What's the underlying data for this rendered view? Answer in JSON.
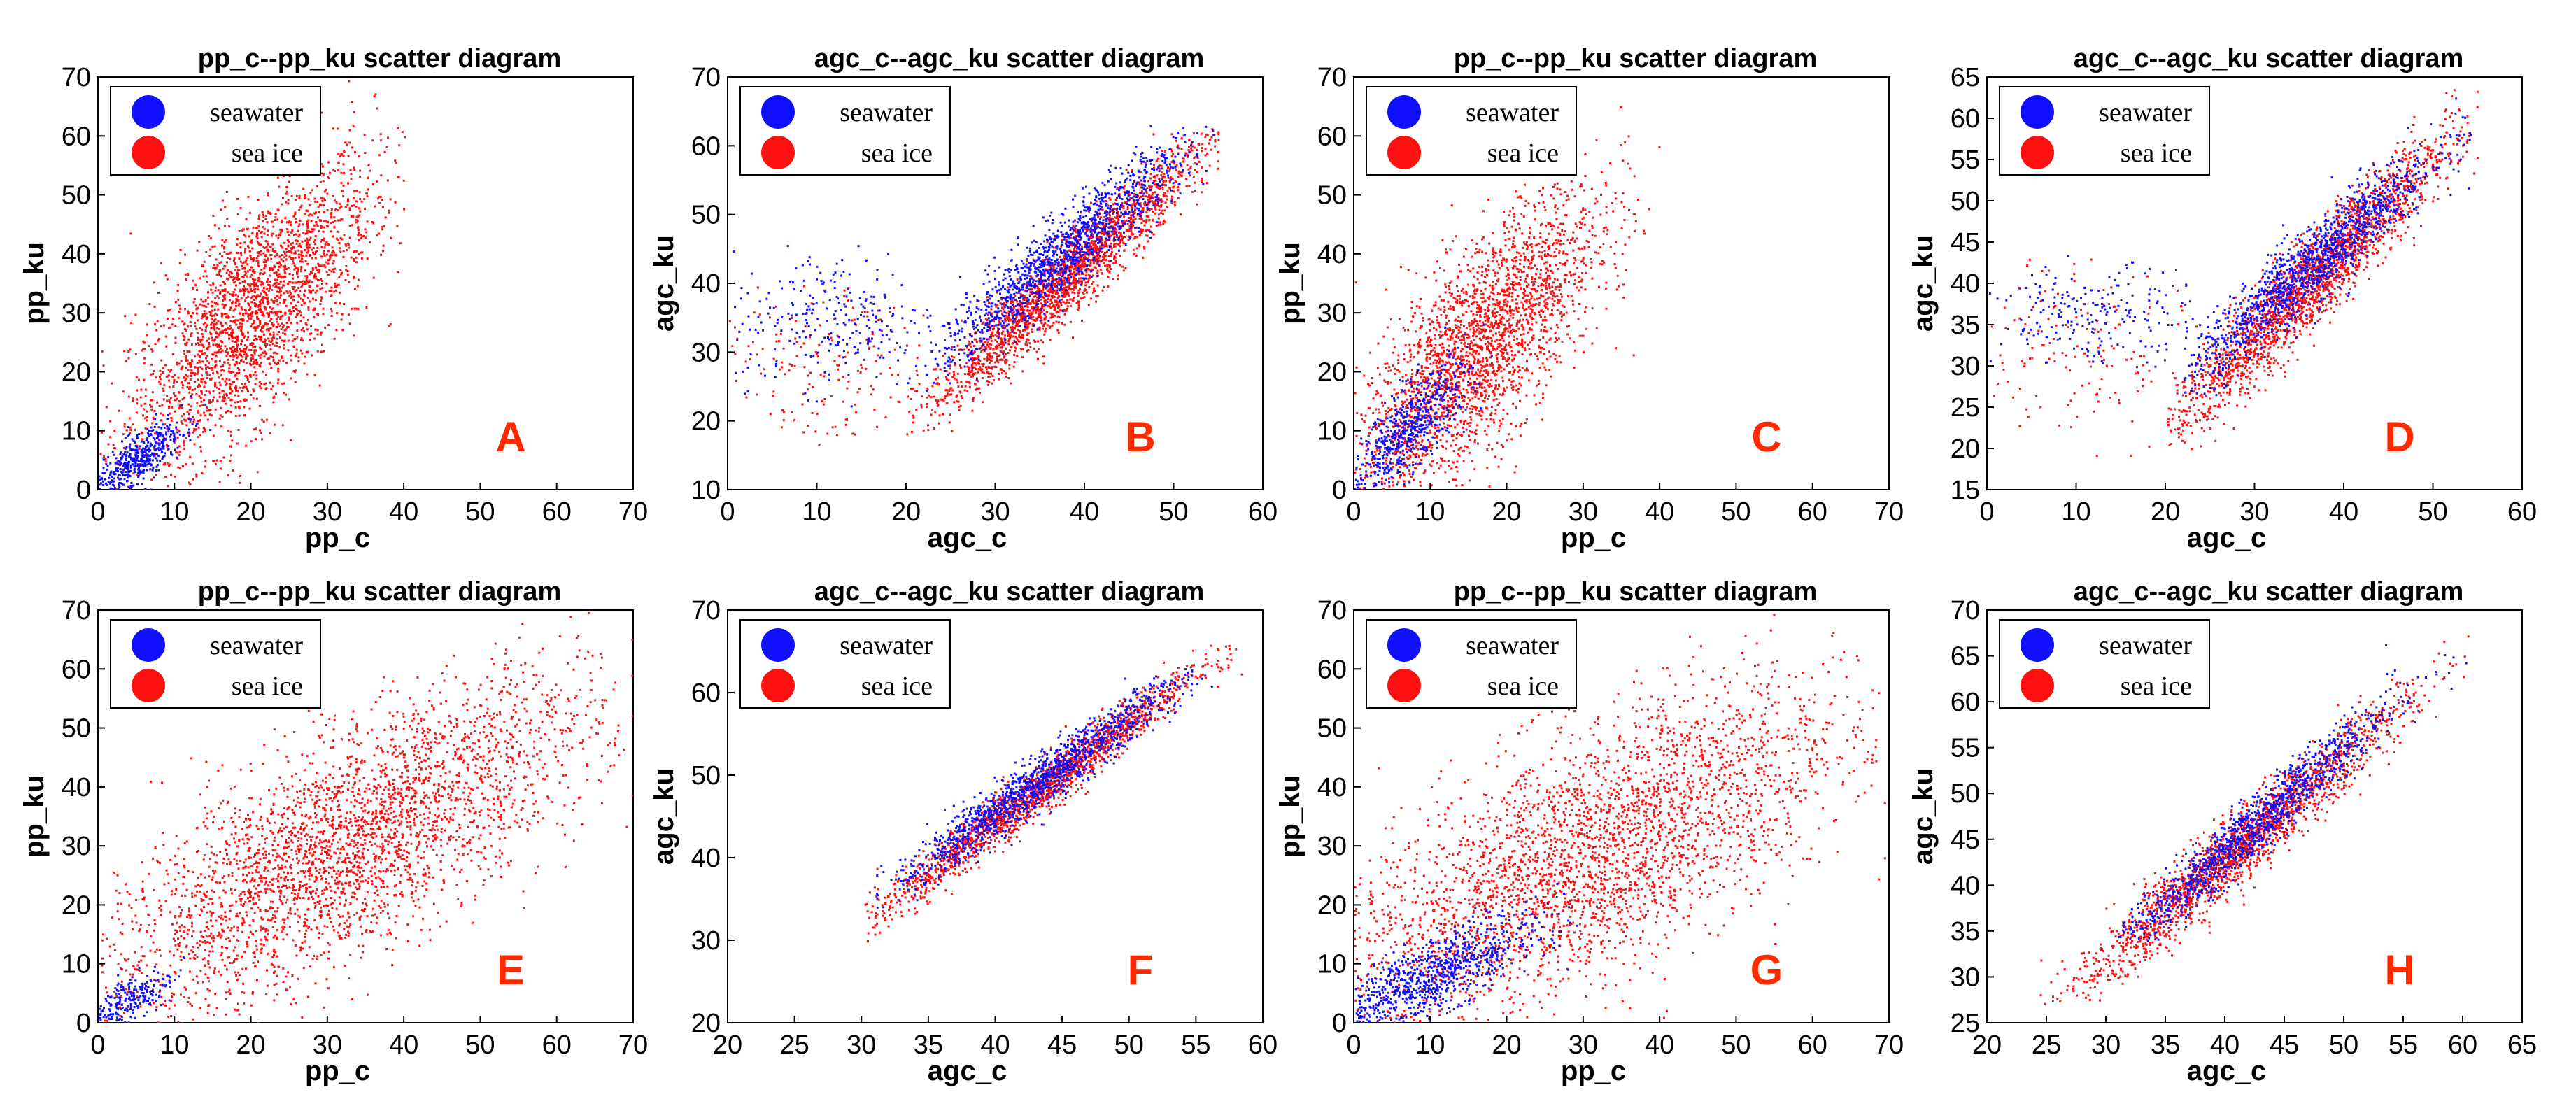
{
  "colors": {
    "seawater": "#1010ff",
    "sea_ice": "#ff1010",
    "panel_letter": "#ff2a00"
  },
  "chart_data": [
    {
      "type": "scatter",
      "panel": "A",
      "title": "pp_c--pp_ku scatter diagram",
      "xlabel": "pp_c",
      "ylabel": "pp_ku",
      "xlim": [
        0,
        70
      ],
      "ylim": [
        0,
        70
      ],
      "xticks": [
        "0",
        "10",
        "20",
        "30",
        "40",
        "50",
        "60",
        "70"
      ],
      "yticks": [
        "0",
        "10",
        "20",
        "30",
        "40",
        "50",
        "60",
        "70"
      ],
      "legend": [
        "seawater",
        "sea ice"
      ],
      "series": [
        {
          "name": "sea ice",
          "color": "#ff1010",
          "center": [
            20,
            30
          ],
          "spread": [
            8,
            13
          ],
          "corr": 0.72,
          "count": 2600,
          "x_range": [
            0,
            40
          ],
          "y_range": [
            0,
            70
          ]
        },
        {
          "name": "seawater",
          "color": "#1010ff",
          "center": [
            5,
            5
          ],
          "spread": [
            3,
            3.5
          ],
          "corr": 0.8,
          "count": 500,
          "x_range": [
            0,
            15
          ],
          "y_range": [
            0,
            20
          ]
        }
      ]
    },
    {
      "type": "scatter",
      "panel": "B",
      "title": "agc_c--agc_ku scatter diagram",
      "xlabel": "agc_c",
      "ylabel": "agc_ku",
      "xlim": [
        0,
        60
      ],
      "ylim": [
        10,
        70
      ],
      "xticks": [
        "0",
        "10",
        "20",
        "30",
        "40",
        "50",
        "60"
      ],
      "yticks": [
        "10",
        "20",
        "30",
        "40",
        "50",
        "60",
        "70"
      ],
      "legend": [
        "seawater",
        "sea ice"
      ],
      "series": [
        {
          "name": "sea ice",
          "color": "#ff1010",
          "center": [
            38,
            41
          ],
          "spread": [
            8,
            10
          ],
          "corr": 0.96,
          "count": 2200,
          "x_range": [
            20,
            55
          ],
          "y_range": [
            18,
            63
          ]
        },
        {
          "name": "seawater",
          "color": "#1010ff",
          "center": [
            37,
            44
          ],
          "spread": [
            7,
            8
          ],
          "corr": 0.93,
          "count": 1300,
          "x_range": [
            22,
            55
          ],
          "y_range": [
            20,
            63
          ]
        },
        {
          "name": "sea ice",
          "color": "#ff1010",
          "center": [
            10,
            27
          ],
          "spread": [
            6,
            7
          ],
          "corr": 0.0,
          "count": 200,
          "x_range": [
            0,
            22
          ],
          "y_range": [
            15,
            40
          ]
        },
        {
          "name": "seawater",
          "color": "#1010ff",
          "center": [
            12,
            35
          ],
          "spread": [
            6,
            5
          ],
          "corr": 0.0,
          "count": 260,
          "x_range": [
            0,
            23
          ],
          "y_range": [
            15,
            52
          ]
        }
      ]
    },
    {
      "type": "scatter",
      "panel": "C",
      "title": "pp_c--pp_ku scatter diagram",
      "xlabel": "pp_c",
      "ylabel": "pp_ku",
      "xlim": [
        0,
        70
      ],
      "ylim": [
        0,
        70
      ],
      "xticks": [
        "0",
        "10",
        "20",
        "30",
        "40",
        "50",
        "60",
        "70"
      ],
      "yticks": [
        "0",
        "10",
        "20",
        "30",
        "40",
        "50",
        "60",
        "70"
      ],
      "legend": [
        "seawater",
        "sea ice"
      ],
      "series": [
        {
          "name": "sea ice",
          "color": "#ff1010",
          "center": [
            16,
            24
          ],
          "spread": [
            8,
            13
          ],
          "corr": 0.75,
          "count": 2600,
          "x_range": [
            0,
            40
          ],
          "y_range": [
            0,
            70
          ]
        },
        {
          "name": "seawater",
          "color": "#1010ff",
          "center": [
            7,
            10
          ],
          "spread": [
            4,
            6
          ],
          "corr": 0.8,
          "count": 600,
          "x_range": [
            0,
            20
          ],
          "y_range": [
            0,
            30
          ]
        }
      ]
    },
    {
      "type": "scatter",
      "panel": "D",
      "title": "agc_c--agc_ku scatter diagram",
      "xlabel": "agc_c",
      "ylabel": "agc_ku",
      "xlim": [
        0,
        60
      ],
      "ylim": [
        15,
        65
      ],
      "xticks": [
        "0",
        "10",
        "20",
        "30",
        "40",
        "50",
        "60"
      ],
      "yticks": [
        "15",
        "20",
        "25",
        "30",
        "35",
        "40",
        "45",
        "50",
        "55",
        "60",
        "65"
      ],
      "legend": [
        "seawater",
        "sea ice"
      ],
      "series": [
        {
          "name": "sea ice",
          "color": "#ff1010",
          "center": [
            36,
            40
          ],
          "spread": [
            8,
            9
          ],
          "corr": 0.95,
          "count": 2200,
          "x_range": [
            20,
            55
          ],
          "y_range": [
            20,
            64
          ]
        },
        {
          "name": "seawater",
          "color": "#1010ff",
          "center": [
            36,
            42
          ],
          "spread": [
            7,
            7
          ],
          "corr": 0.94,
          "count": 1300,
          "x_range": [
            22,
            55
          ],
          "y_range": [
            20,
            64
          ]
        },
        {
          "name": "sea ice",
          "color": "#ff1010",
          "center": [
            10,
            32
          ],
          "spread": [
            6,
            7
          ],
          "corr": 0.0,
          "count": 160,
          "x_range": [
            0,
            22
          ],
          "y_range": [
            17,
            45
          ]
        },
        {
          "name": "seawater",
          "color": "#1010ff",
          "center": [
            12,
            36
          ],
          "spread": [
            6,
            3
          ],
          "corr": 0.0,
          "count": 220,
          "x_range": [
            0,
            23
          ],
          "y_range": [
            30,
            45
          ]
        }
      ]
    },
    {
      "type": "scatter",
      "panel": "E",
      "title": "pp_c--pp_ku scatter diagram",
      "xlabel": "pp_c",
      "ylabel": "pp_ku",
      "xlim": [
        0,
        70
      ],
      "ylim": [
        0,
        70
      ],
      "xticks": [
        "0",
        "10",
        "20",
        "30",
        "40",
        "50",
        "60",
        "70"
      ],
      "yticks": [
        "0",
        "10",
        "20",
        "30",
        "40",
        "50",
        "60",
        "70"
      ],
      "legend": [
        "seawater",
        "sea ice"
      ],
      "series": [
        {
          "name": "sea ice",
          "color": "#ff1010",
          "center": [
            32,
            30
          ],
          "spread": [
            16,
            14
          ],
          "corr": 0.75,
          "count": 3200,
          "x_range": [
            0,
            70
          ],
          "y_range": [
            0,
            70
          ]
        },
        {
          "name": "seawater",
          "color": "#1010ff",
          "center": [
            4,
            4
          ],
          "spread": [
            3,
            3
          ],
          "corr": 0.7,
          "count": 250,
          "x_range": [
            0,
            12
          ],
          "y_range": [
            0,
            12
          ]
        }
      ]
    },
    {
      "type": "scatter",
      "panel": "F",
      "title": "agc_c--agc_ku scatter diagram",
      "xlabel": "agc_c",
      "ylabel": "agc_ku",
      "xlim": [
        20,
        60
      ],
      "ylim": [
        20,
        70
      ],
      "xticks": [
        "20",
        "25",
        "30",
        "35",
        "40",
        "45",
        "50",
        "55",
        "60"
      ],
      "yticks": [
        "20",
        "30",
        "40",
        "50",
        "60",
        "70"
      ],
      "legend": [
        "seawater",
        "sea ice"
      ],
      "series": [
        {
          "name": "sea ice",
          "color": "#ff1010",
          "center": [
            43,
            48
          ],
          "spread": [
            6,
            7.5
          ],
          "corr": 0.98,
          "count": 1800,
          "x_range": [
            30,
            60
          ],
          "y_range": [
            29,
            66
          ]
        },
        {
          "name": "seawater",
          "color": "#1010ff",
          "center": [
            43,
            49
          ],
          "spread": [
            5.5,
            6.5
          ],
          "corr": 0.97,
          "count": 1300,
          "x_range": [
            31,
            57
          ],
          "y_range": [
            34,
            63
          ]
        }
      ]
    },
    {
      "type": "scatter",
      "panel": "G",
      "title": "pp_c--pp_ku scatter diagram",
      "xlabel": "pp_c",
      "ylabel": "pp_ku",
      "xlim": [
        0,
        70
      ],
      "ylim": [
        0,
        70
      ],
      "xticks": [
        "0",
        "10",
        "20",
        "30",
        "40",
        "50",
        "60",
        "70"
      ],
      "yticks": [
        "0",
        "10",
        "20",
        "30",
        "40",
        "50",
        "60",
        "70"
      ],
      "legend": [
        "seawater",
        "sea ice"
      ],
      "series": [
        {
          "name": "sea ice",
          "color": "#ff1010",
          "center": [
            30,
            28
          ],
          "spread": [
            17,
            15
          ],
          "corr": 0.7,
          "count": 3200,
          "x_range": [
            0,
            70
          ],
          "y_range": [
            0,
            70
          ]
        },
        {
          "name": "seawater",
          "color": "#1010ff",
          "center": [
            10,
            8
          ],
          "spread": [
            7,
            5
          ],
          "corr": 0.8,
          "count": 900,
          "x_range": [
            0,
            30
          ],
          "y_range": [
            0,
            25
          ]
        }
      ]
    },
    {
      "type": "scatter",
      "panel": "H",
      "title": "agc_c--agc_ku scatter diagram",
      "xlabel": "agc_c",
      "ylabel": "agc_ku",
      "xlim": [
        20,
        65
      ],
      "ylim": [
        25,
        70
      ],
      "xticks": [
        "20",
        "25",
        "30",
        "35",
        "40",
        "45",
        "50",
        "55",
        "60",
        "65"
      ],
      "yticks": [
        "25",
        "30",
        "35",
        "40",
        "45",
        "50",
        "55",
        "60",
        "65",
        "70"
      ],
      "legend": [
        "seawater",
        "sea ice"
      ],
      "series": [
        {
          "name": "sea ice",
          "color": "#ff1010",
          "center": [
            41,
            44
          ],
          "spread": [
            7,
            8
          ],
          "corr": 0.97,
          "count": 2000,
          "x_range": [
            24,
            62
          ],
          "y_range": [
            27,
            69
          ]
        },
        {
          "name": "seawater",
          "color": "#1010ff",
          "center": [
            42,
            46
          ],
          "spread": [
            6,
            7
          ],
          "corr": 0.97,
          "count": 1200,
          "x_range": [
            31,
            61
          ],
          "y_range": [
            34,
            69
          ]
        }
      ]
    }
  ]
}
